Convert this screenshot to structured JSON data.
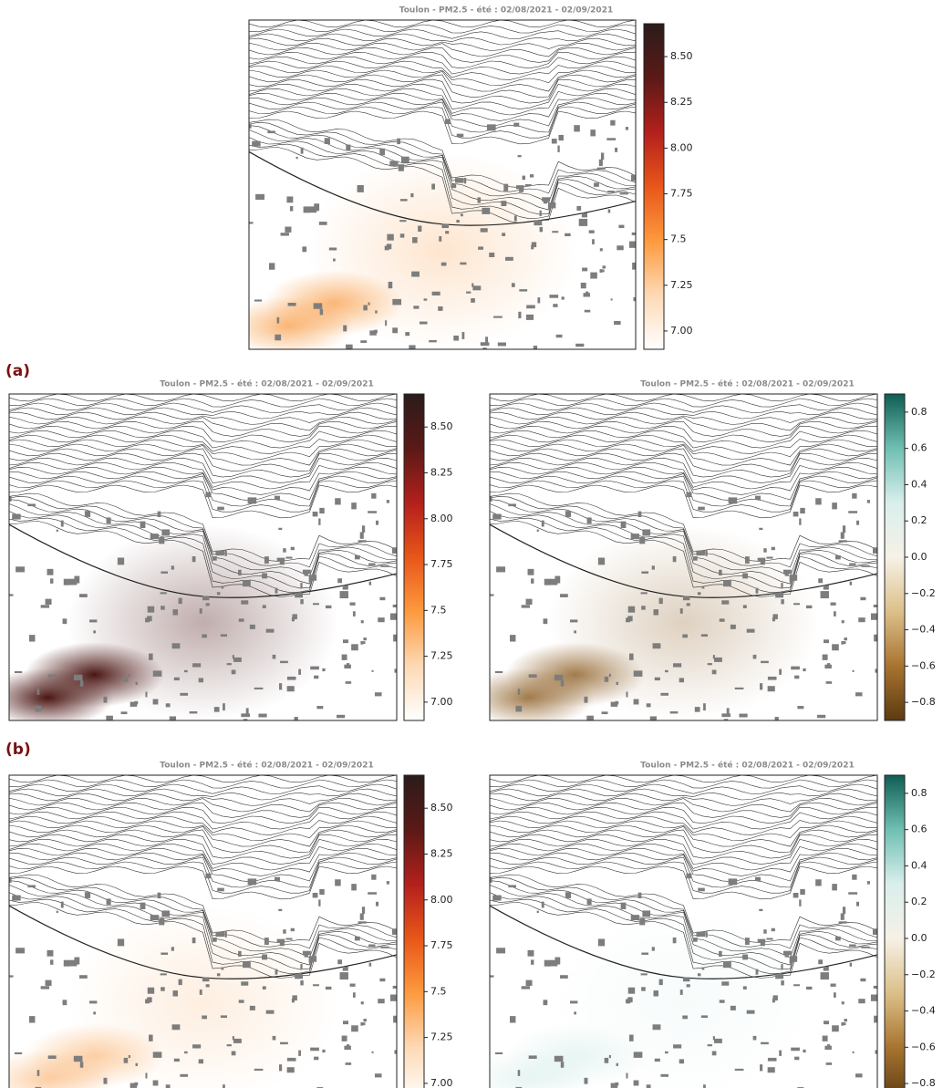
{
  "panel_labels": [
    "(a)",
    "(b)"
  ],
  "chart_data": [
    {
      "type": "map",
      "title": "Toulon - PM2.5 - été : 02/08/2021 - 02/09/2021",
      "colormap": [
        "#ffffff",
        "#fdd9b5",
        "#fd9a3e",
        "#e8561a",
        "#b3201c",
        "#5a1a17",
        "#2b1b1b"
      ],
      "clim": [
        6.9,
        8.68
      ],
      "cticks": [
        {
          "value": 7,
          "label": "7.00"
        },
        7.25,
        7.5,
        7.75,
        {
          "value": 8,
          "label": "8.00"
        },
        8.25,
        {
          "value": 8.5,
          "label": "8.50"
        }
      ]
    },
    {
      "type": "map",
      "title": "Toulon - PM2.5 - été : 02/08/2021 - 02/09/2021",
      "colormap": [
        "#ffffff",
        "#fdd9b5",
        "#fd9a3e",
        "#e8561a",
        "#b3201c",
        "#5a1a17",
        "#2b1b1b"
      ],
      "clim": [
        6.9,
        8.68
      ],
      "cticks": [
        {
          "value": 7,
          "label": "7.00"
        },
        7.25,
        7.5,
        7.75,
        {
          "value": 8,
          "label": "8.00"
        },
        8.25,
        {
          "value": 8.5,
          "label": "8.50"
        }
      ]
    },
    {
      "type": "map",
      "title": "Toulon - PM2.5 - été : 02/08/2021 - 02/09/2021",
      "colormap": [
        "#5c3a12",
        "#a8742f",
        "#dcc08a",
        "#f6f1e6",
        "#d9efec",
        "#6fbfb2",
        "#0f5e55"
      ],
      "clim": [
        -0.9,
        0.9
      ],
      "cticks": [
        {
          "value": -0.8,
          "label": "−0.8"
        },
        {
          "value": -0.6,
          "label": "−0.6"
        },
        {
          "value": -0.4,
          "label": "−0.4"
        },
        {
          "value": -0.2,
          "label": "−0.2"
        },
        {
          "value": 0,
          "label": "0.0"
        },
        0.2,
        0.4,
        0.6,
        0.8
      ]
    },
    {
      "type": "map",
      "title": "Toulon - PM2.5 - été : 02/08/2021 - 02/09/2021",
      "colormap": [
        "#ffffff",
        "#fdd9b5",
        "#fd9a3e",
        "#e8561a",
        "#b3201c",
        "#5a1a17",
        "#2b1b1b"
      ],
      "clim": [
        6.9,
        8.68
      ],
      "cticks": [
        {
          "value": 7,
          "label": "7.00"
        },
        7.25,
        7.5,
        7.75,
        {
          "value": 8,
          "label": "8.00"
        },
        8.25,
        {
          "value": 8.5,
          "label": "8.50"
        }
      ]
    },
    {
      "type": "map",
      "title": "Toulon - PM2.5 - été : 02/08/2021 - 02/09/2021",
      "colormap": [
        "#5c3a12",
        "#a8742f",
        "#dcc08a",
        "#f6f1e6",
        "#d9efec",
        "#6fbfb2",
        "#0f5e55"
      ],
      "clim": [
        -0.9,
        0.9
      ],
      "cticks": [
        {
          "value": -0.8,
          "label": "−0.8"
        },
        {
          "value": -0.6,
          "label": "−0.6"
        },
        {
          "value": -0.4,
          "label": "−0.4"
        },
        {
          "value": -0.2,
          "label": "−0.2"
        },
        {
          "value": 0,
          "label": "0.0"
        },
        0.2,
        0.4,
        0.6,
        0.8
      ]
    }
  ]
}
